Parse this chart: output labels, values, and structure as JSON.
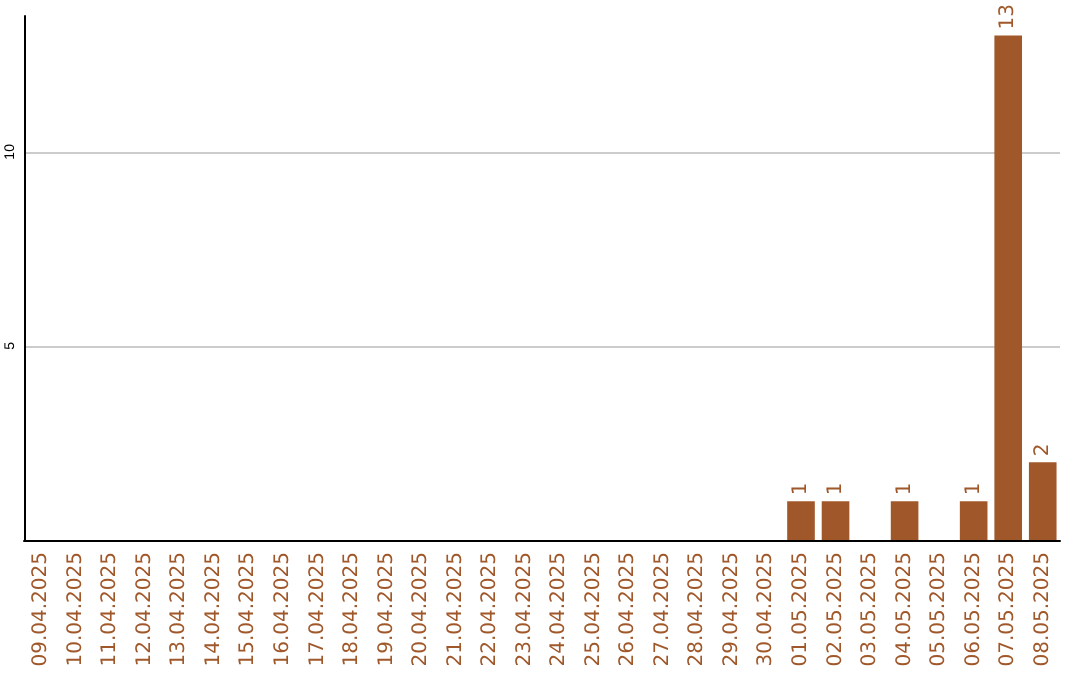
{
  "chart_data": {
    "type": "bar",
    "categories": [
      "09.04.2025",
      "10.04.2025",
      "11.04.2025",
      "12.04.2025",
      "13.04.2025",
      "14.04.2025",
      "15.04.2025",
      "16.04.2025",
      "17.04.2025",
      "18.04.2025",
      "19.04.2025",
      "20.04.2025",
      "21.04.2025",
      "22.04.2025",
      "23.04.2025",
      "24.04.2025",
      "25.04.2025",
      "26.04.2025",
      "27.04.2025",
      "28.04.2025",
      "29.04.2025",
      "30.04.2025",
      "01.05.2025",
      "02.05.2025",
      "03.05.2025",
      "04.05.2025",
      "05.05.2025",
      "06.05.2025",
      "07.05.2025",
      "08.05.2025"
    ],
    "values": [
      null,
      null,
      null,
      null,
      null,
      null,
      null,
      null,
      null,
      null,
      null,
      null,
      null,
      null,
      null,
      null,
      null,
      null,
      null,
      null,
      null,
      null,
      1,
      1,
      null,
      1,
      null,
      1,
      13,
      2
    ],
    "color": "#a0582a",
    "ylim": [
      0,
      13.5
    ],
    "yticks": [
      {
        "value": 0,
        "label": null
      },
      5,
      10
    ],
    "grid": "y",
    "data_labels": true
  }
}
